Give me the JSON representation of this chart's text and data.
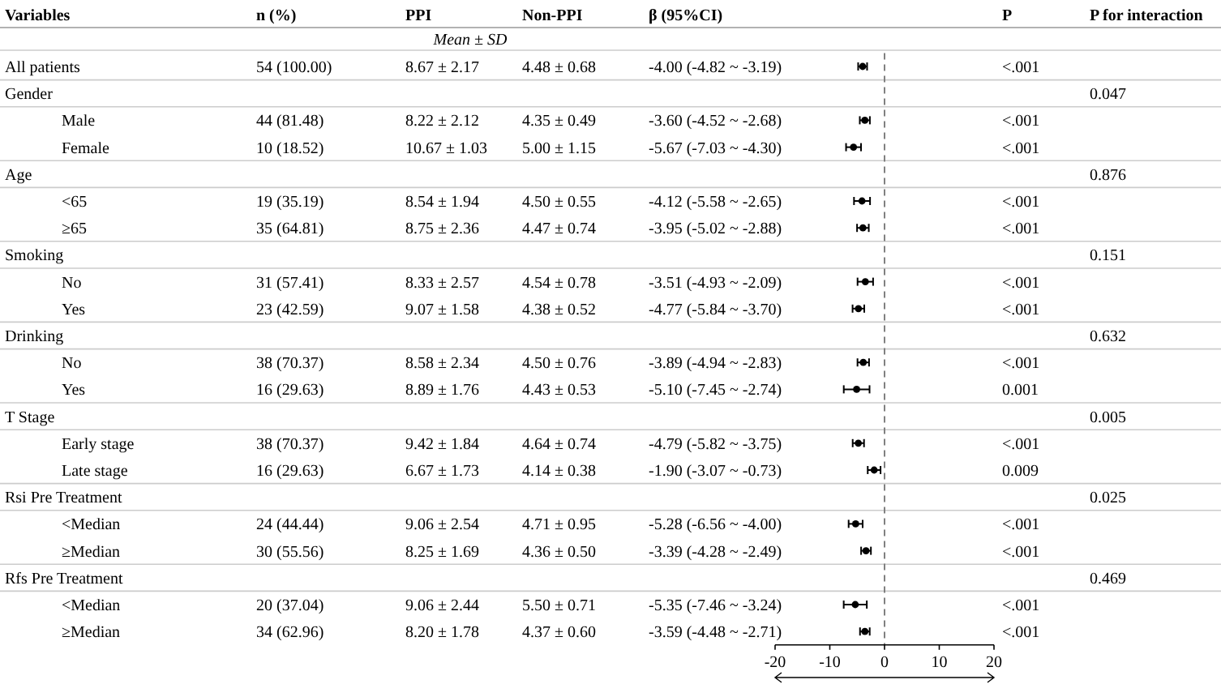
{
  "chart_data": [
    {
      "type": "other",
      "subtitle": "Mean ± SD",
      "ylabel": "Variables",
      "categories": [
        "n (%)",
        "PPI",
        "Non-PPI",
        "β (95%CI)",
        "P",
        "P for interaction"
      ],
      "y_categories": [
        "All patients",
        "Gender",
        "Male",
        "Female",
        "Age",
        "<65",
        "≥65",
        "Smoking",
        "No",
        "Yes",
        "Drinking",
        "No",
        "Yes",
        "T Stage",
        "Early stage",
        "Late stage",
        "Rsi Pre Treatment",
        "<Median",
        "≥Median",
        "Rfs Pre Treatment",
        "<Median",
        "≥Median"
      ],
      "cell_labels": [
        [
          "54 (100.00)",
          "8.67 ± 2.17",
          "4.48 ± 0.68",
          "-4.00 (-4.82 ~ -3.19)",
          "<.001",
          null
        ],
        [
          null,
          null,
          null,
          null,
          null,
          "0.047"
        ],
        [
          "44 (81.48)",
          "8.22 ± 2.12",
          "4.35 ± 0.49",
          "-3.60 (-4.52 ~ -2.68)",
          "<.001",
          null
        ],
        [
          "10 (18.52)",
          "10.67 ± 1.03",
          "5.00 ± 1.15",
          "-5.67 (-7.03 ~ -4.30)",
          "<.001",
          null
        ],
        [
          null,
          null,
          null,
          null,
          null,
          "0.876"
        ],
        [
          "19 (35.19)",
          "8.54 ± 1.94",
          "4.50 ± 0.55",
          "-4.12 (-5.58 ~ -2.65)",
          "<.001",
          null
        ],
        [
          "35 (64.81)",
          "8.75 ± 2.36",
          "4.47 ± 0.74",
          "-3.95 (-5.02 ~ -2.88)",
          "<.001",
          null
        ],
        [
          null,
          null,
          null,
          null,
          null,
          "0.151"
        ],
        [
          "31 (57.41)",
          "8.33 ± 2.57",
          "4.54 ± 0.78",
          "-3.51 (-4.93 ~ -2.09)",
          "<.001",
          null
        ],
        [
          "23 (42.59)",
          "9.07 ± 1.58",
          "4.38 ± 0.52",
          "-4.77 (-5.84 ~ -3.70)",
          "<.001",
          null
        ],
        [
          null,
          null,
          null,
          null,
          null,
          "0.632"
        ],
        [
          "38 (70.37)",
          "8.58 ± 2.34",
          "4.50 ± 0.76",
          "-3.89 (-4.94 ~ -2.83)",
          "<.001",
          null
        ],
        [
          "16 (29.63)",
          "8.89 ± 1.76",
          "4.43 ± 0.53",
          "-5.10 (-7.45 ~ -2.74)",
          "0.001",
          null
        ],
        [
          null,
          null,
          null,
          null,
          null,
          "0.005"
        ],
        [
          "38 (70.37)",
          "9.42 ± 1.84",
          "4.64 ± 0.74",
          "-4.79 (-5.82 ~ -3.75)",
          "<.001",
          null
        ],
        [
          "16 (29.63)",
          "6.67 ± 1.73",
          "4.14 ± 0.38",
          "-1.90 (-3.07 ~ -0.73)",
          "0.009",
          null
        ],
        [
          null,
          null,
          null,
          null,
          null,
          "0.025"
        ],
        [
          "24 (44.44)",
          "9.06 ± 2.54",
          "4.71 ± 0.95",
          "-5.28 (-6.56 ~ -4.00)",
          "<.001",
          null
        ],
        [
          "30 (55.56)",
          "8.25 ± 1.69",
          "4.36 ± 0.50",
          "-3.39 (-4.28 ~ -2.49)",
          "<.001",
          null
        ],
        [
          null,
          null,
          null,
          null,
          null,
          "0.469"
        ],
        [
          "20 (37.04)",
          "9.06 ± 2.44",
          "5.50 ± 0.71",
          "-5.35 (-7.46 ~ -3.24)",
          "<.001",
          null
        ],
        [
          "34 (62.96)",
          "8.20 ± 1.78",
          "4.37 ± 0.60",
          "-3.59 (-4.48 ~ -2.71)",
          "<.001",
          null
        ]
      ]
    },
    {
      "type": "scatter",
      "orientation": "horizontal",
      "marker": "circle",
      "color": "#000000",
      "categories": [
        null,
        null,
        null,
        null,
        null,
        null,
        null,
        null,
        null,
        null,
        null,
        null,
        null,
        null,
        null,
        null,
        null,
        null,
        null,
        null,
        null,
        null
      ],
      "values": [
        -4.0,
        null,
        -3.6,
        -5.67,
        null,
        -4.12,
        -3.95,
        null,
        -3.51,
        -4.77,
        null,
        -3.89,
        -5.1,
        null,
        -4.79,
        -1.9,
        null,
        -5.28,
        -3.39,
        null,
        -5.35,
        -3.59
      ],
      "errors": [
        [
          -4.82,
          -3.19
        ],
        null,
        [
          -4.52,
          -2.68
        ],
        [
          -7.03,
          -4.3
        ],
        null,
        [
          -5.58,
          -2.65
        ],
        [
          -5.02,
          -2.88
        ],
        null,
        [
          -4.93,
          -2.09
        ],
        [
          -5.84,
          -3.7
        ],
        null,
        [
          -4.94,
          -2.83
        ],
        [
          -7.45,
          -2.74
        ],
        null,
        [
          -5.82,
          -3.75
        ],
        [
          -3.07,
          -0.73
        ],
        null,
        [
          -6.56,
          -4.0
        ],
        [
          -4.28,
          -2.49
        ],
        null,
        [
          -7.46,
          -3.24
        ],
        [
          -4.48,
          -2.71
        ]
      ],
      "xlim": [
        -20,
        20
      ],
      "xticks": [
        {
          "value": -20,
          "label": "-20"
        },
        {
          "value": -10,
          "label": "-10"
        },
        0,
        10,
        20
      ],
      "ref_lines": [
        {
          "axis": "x",
          "value": 0,
          "line_style": "dashed",
          "color": "#808080"
        }
      ]
    }
  ]
}
